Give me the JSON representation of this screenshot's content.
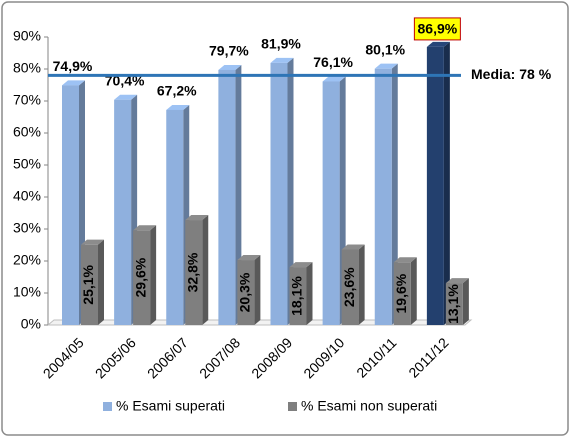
{
  "chart_data": {
    "type": "bar",
    "categories": [
      "2004/05",
      "2005/06",
      "2006/07",
      "2007/08",
      "2008/09",
      "2009/10",
      "2010/11",
      "2011/12"
    ],
    "series": [
      {
        "name": "% Esami superati",
        "color": [
          "#8fb0de",
          "#8fb0de",
          "#8fb0de",
          "#8fb0de",
          "#8fb0de",
          "#8fb0de",
          "#8fb0de",
          "#23406e"
        ],
        "values": [
          74.9,
          70.4,
          67.2,
          79.7,
          81.9,
          76.1,
          80.1,
          86.9
        ],
        "value_labels": [
          "74,9%",
          "70,4%",
          "67,2%",
          "79,7%",
          "81,9%",
          "76,1%",
          "80,1%",
          "86,9%"
        ]
      },
      {
        "name": "% Esami non superati",
        "color": "#7f7f7f",
        "values": [
          25.1,
          29.6,
          32.8,
          20.3,
          18.1,
          23.6,
          19.6,
          13.1
        ],
        "value_labels": [
          "25,1%",
          "29,6%",
          "32,8%",
          "20,3%",
          "18,1%",
          "23,6%",
          "19,6%",
          "13,1%"
        ]
      }
    ],
    "ylim": [
      0,
      90
    ],
    "yticks": [
      {
        "value": 0,
        "label": "0%"
      },
      {
        "value": 10,
        "label": "10%"
      },
      {
        "value": 20,
        "label": "20%"
      },
      {
        "value": 30,
        "label": "30%"
      },
      {
        "value": 40,
        "label": "40%"
      },
      {
        "value": 50,
        "label": "50%"
      },
      {
        "value": 60,
        "label": "60%"
      },
      {
        "value": 70,
        "label": "70%"
      },
      {
        "value": 80,
        "label": "80%"
      },
      {
        "value": 90,
        "label": "90%"
      }
    ],
    "reference_line": {
      "value": 78,
      "label": "Media: 78 %",
      "color": "#2e75b6"
    },
    "highlight": {
      "index": 7,
      "label_background": "#ffff00",
      "label_color": "#ff0000"
    },
    "grid": false
  }
}
